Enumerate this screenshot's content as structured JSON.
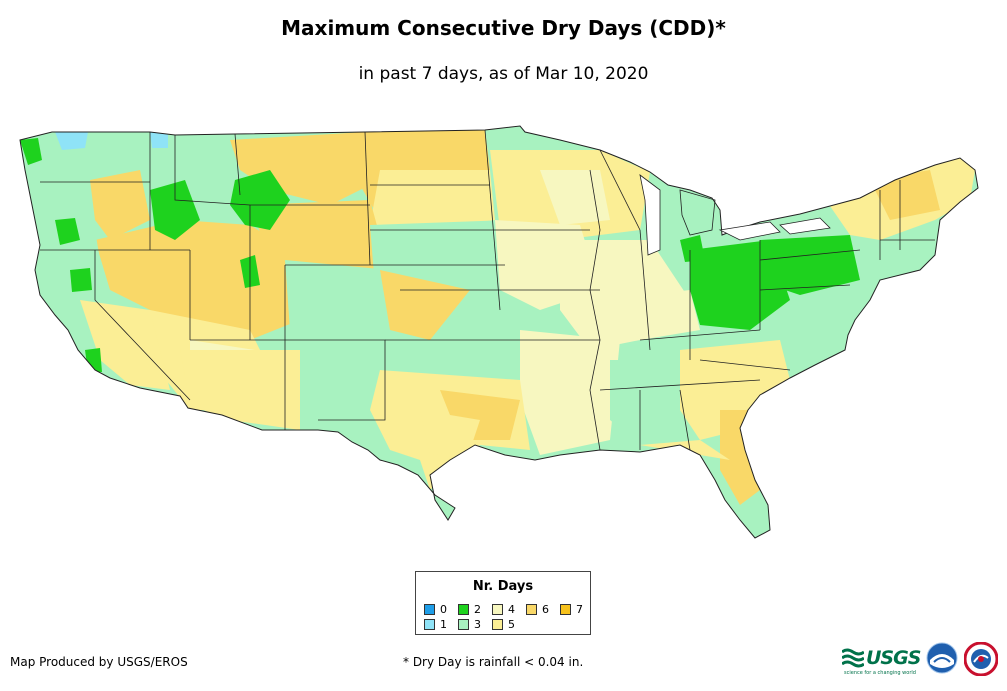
{
  "title": "Maximum Consecutive Dry Days (CDD)*",
  "subtitle": "in past 7 days, as of Mar 10, 2020",
  "legend": {
    "title": "Nr. Days",
    "items": [
      {
        "label": "0",
        "color": "#1f9ee8"
      },
      {
        "label": "1",
        "color": "#8fe3f7"
      },
      {
        "label": "2",
        "color": "#1ed21e"
      },
      {
        "label": "3",
        "color": "#a8f2c0"
      },
      {
        "label": "4",
        "color": "#f7f7c0"
      },
      {
        "label": "5",
        "color": "#fbee95"
      },
      {
        "label": "6",
        "color": "#f9d868"
      },
      {
        "label": "7",
        "color": "#f7c21c"
      }
    ]
  },
  "footer": {
    "credit": "Map Produced by USGS/EROS",
    "note": "* Dry Day is rainfall < 0.04 in."
  },
  "logos": {
    "usgs": "USGS",
    "usgs_tagline": "science for a changing world",
    "noaa_icon": "noaa-logo-icon",
    "nws_icon": "nws-logo-icon"
  }
}
